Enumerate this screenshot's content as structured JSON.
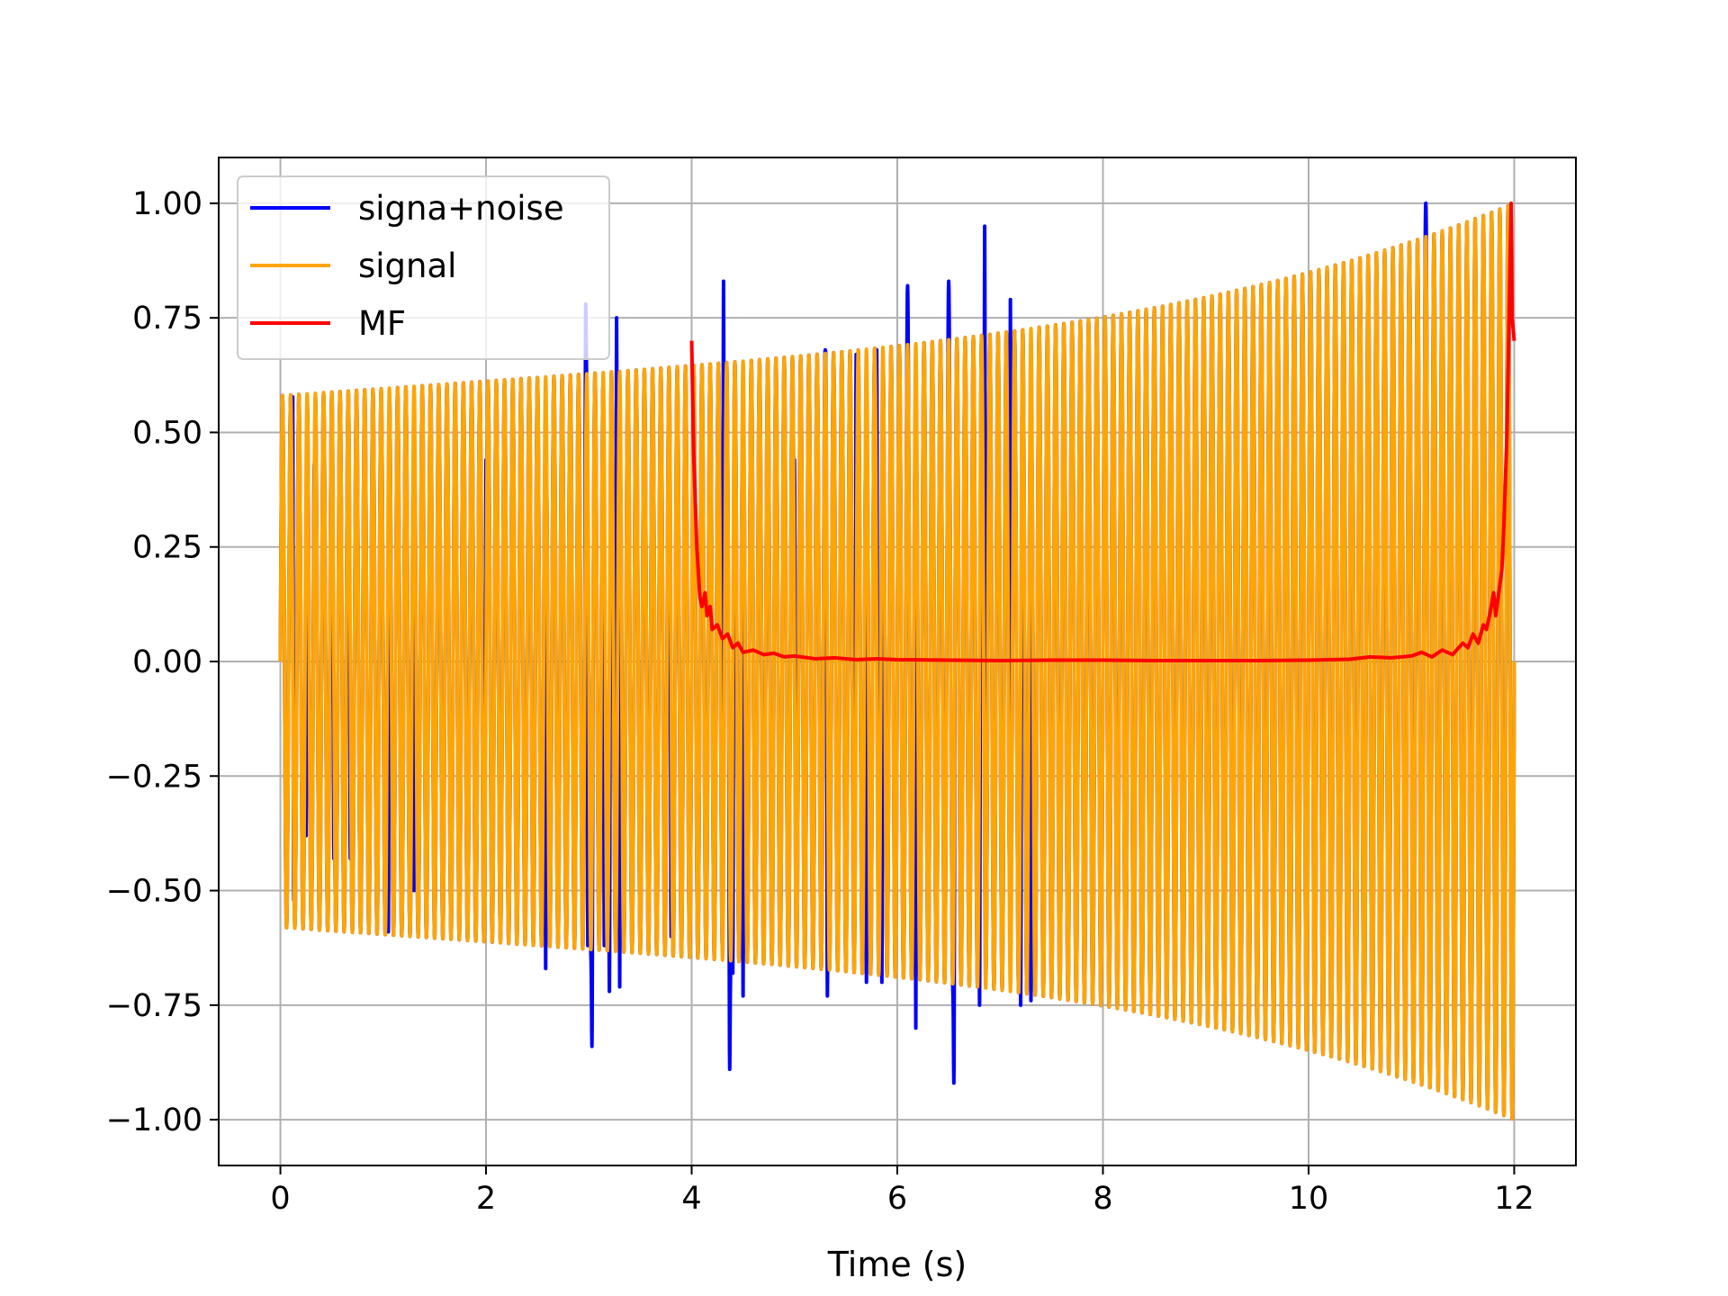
{
  "chart_data": {
    "type": "line",
    "title": "",
    "xlabel": "Time (s)",
    "ylabel": "",
    "xlim": [
      -0.6,
      12.6
    ],
    "ylim": [
      -1.1,
      1.1
    ],
    "grid": true,
    "legend_position": "top-left",
    "xticks": [
      {
        "value": 0,
        "label": "0"
      },
      {
        "value": 2,
        "label": "2"
      },
      {
        "value": 4,
        "label": "4"
      },
      {
        "value": 6,
        "label": "6"
      },
      {
        "value": 8,
        "label": "8"
      },
      {
        "value": 10,
        "label": "10"
      },
      {
        "value": 12,
        "label": "12"
      }
    ],
    "yticks": [
      {
        "value": 1.0,
        "label": "1.00"
      },
      {
        "value": 0.75,
        "label": "0.75"
      },
      {
        "value": 0.5,
        "label": "0.50"
      },
      {
        "value": 0.25,
        "label": "0.25"
      },
      {
        "value": 0.0,
        "label": "0.00"
      },
      {
        "value": -0.25,
        "label": "−0.25"
      },
      {
        "value": -0.5,
        "label": "−0.50"
      },
      {
        "value": -0.75,
        "label": "−0.75"
      },
      {
        "value": -1.0,
        "label": "−1.00"
      }
    ],
    "series": [
      {
        "name": "signa+noise",
        "color": "#0000ff",
        "x_range": [
          0,
          12
        ],
        "spikes": [
          {
            "t": 0.12,
            "v": 0.65
          },
          {
            "t": 0.13,
            "v": -0.52
          },
          {
            "t": 0.25,
            "v": -0.38
          },
          {
            "t": 0.33,
            "v": 0.43
          },
          {
            "t": 0.52,
            "v": -0.43
          },
          {
            "t": 0.68,
            "v": -0.43
          },
          {
            "t": 1.05,
            "v": -0.59
          },
          {
            "t": 1.3,
            "v": -0.5
          },
          {
            "t": 2.0,
            "v": 0.44
          },
          {
            "t": 2.58,
            "v": -0.67
          },
          {
            "t": 2.97,
            "v": 0.78
          },
          {
            "t": 2.99,
            "v": -0.62
          },
          {
            "t": 3.03,
            "v": -0.84
          },
          {
            "t": 3.15,
            "v": -0.62
          },
          {
            "t": 3.2,
            "v": -0.72
          },
          {
            "t": 3.27,
            "v": 0.75
          },
          {
            "t": 3.3,
            "v": -0.71
          },
          {
            "t": 3.8,
            "v": -0.6
          },
          {
            "t": 4.31,
            "v": 0.83
          },
          {
            "t": 4.37,
            "v": -0.89
          },
          {
            "t": 4.4,
            "v": -0.68
          },
          {
            "t": 4.5,
            "v": -0.73
          },
          {
            "t": 5.0,
            "v": 0.44
          },
          {
            "t": 5.3,
            "v": 0.68
          },
          {
            "t": 5.32,
            "v": -0.73
          },
          {
            "t": 5.6,
            "v": 0.67
          },
          {
            "t": 5.7,
            "v": -0.7
          },
          {
            "t": 5.8,
            "v": 0.68
          },
          {
            "t": 5.85,
            "v": -0.7
          },
          {
            "t": 6.1,
            "v": 0.82
          },
          {
            "t": 6.18,
            "v": -0.8
          },
          {
            "t": 6.5,
            "v": 0.83
          },
          {
            "t": 6.55,
            "v": -0.92
          },
          {
            "t": 6.85,
            "v": 0.95
          },
          {
            "t": 6.8,
            "v": -0.75
          },
          {
            "t": 7.1,
            "v": 0.79
          },
          {
            "t": 7.2,
            "v": -0.75
          },
          {
            "t": 7.3,
            "v": -0.74
          },
          {
            "t": 11.14,
            "v": 1.0
          }
        ]
      },
      {
        "name": "signal",
        "color": "#ffa500",
        "x_range": [
          0,
          12
        ],
        "envelope_start": 0.58,
        "envelope_end": 1.0,
        "envelope_shape": "increasing, steepening toward t = 12",
        "cycles": 150
      },
      {
        "name": "MF",
        "color": "#ff0000",
        "x": [
          4.0,
          4.02,
          4.05,
          4.08,
          4.1,
          4.13,
          4.15,
          4.18,
          4.2,
          4.25,
          4.3,
          4.35,
          4.4,
          4.45,
          4.5,
          4.6,
          4.7,
          4.8,
          4.9,
          5.0,
          5.2,
          5.4,
          5.6,
          5.8,
          6.0,
          6.5,
          7.0,
          7.5,
          8.0,
          8.5,
          9.0,
          9.5,
          10.0,
          10.4,
          10.6,
          10.8,
          11.0,
          11.1,
          11.2,
          11.3,
          11.4,
          11.5,
          11.55,
          11.6,
          11.65,
          11.7,
          11.73,
          11.76,
          11.8,
          11.82,
          11.85,
          11.88,
          11.9,
          11.93,
          11.95,
          11.97,
          11.98,
          12.0
        ],
        "values": [
          0.7,
          0.45,
          0.25,
          0.14,
          0.12,
          0.15,
          0.1,
          0.12,
          0.07,
          0.08,
          0.05,
          0.06,
          0.03,
          0.04,
          0.02,
          0.025,
          0.015,
          0.018,
          0.01,
          0.012,
          0.006,
          0.008,
          0.004,
          0.006,
          0.004,
          0.003,
          0.002,
          0.003,
          0.003,
          0.002,
          0.002,
          0.002,
          0.003,
          0.005,
          0.01,
          0.008,
          0.012,
          0.02,
          0.01,
          0.025,
          0.015,
          0.04,
          0.03,
          0.06,
          0.04,
          0.08,
          0.07,
          0.1,
          0.15,
          0.1,
          0.15,
          0.2,
          0.3,
          0.5,
          0.75,
          1.0,
          0.75,
          0.7
        ]
      }
    ]
  }
}
